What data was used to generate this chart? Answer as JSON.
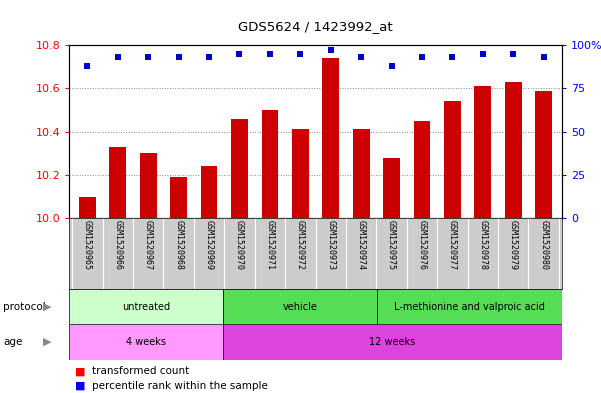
{
  "title": "GDS5624 / 1423992_at",
  "samples": [
    "GSM1520965",
    "GSM1520966",
    "GSM1520967",
    "GSM1520968",
    "GSM1520969",
    "GSM1520970",
    "GSM1520971",
    "GSM1520972",
    "GSM1520973",
    "GSM1520974",
    "GSM1520975",
    "GSM1520976",
    "GSM1520977",
    "GSM1520978",
    "GSM1520979",
    "GSM1520980"
  ],
  "transformed_count": [
    10.1,
    10.33,
    10.3,
    10.19,
    10.24,
    10.46,
    10.5,
    10.41,
    10.74,
    10.41,
    10.28,
    10.45,
    10.54,
    10.61,
    10.63,
    10.59
  ],
  "percentile_rank": [
    88,
    93,
    93,
    93,
    93,
    95,
    95,
    95,
    97,
    93,
    88,
    93,
    93,
    95,
    95,
    93
  ],
  "ylim_left": [
    10.0,
    10.8
  ],
  "ylim_right": [
    0,
    100
  ],
  "yticks_left": [
    10.0,
    10.2,
    10.4,
    10.6,
    10.8
  ],
  "yticks_right": [
    0,
    25,
    50,
    75,
    100
  ],
  "bar_color": "#cc0000",
  "dot_color": "#0000cc",
  "protocol_segs": [
    {
      "label": "untreated",
      "start": 0,
      "end": 5,
      "color": "#ccffcc"
    },
    {
      "label": "vehicle",
      "start": 5,
      "end": 10,
      "color": "#55dd55"
    },
    {
      "label": "L-methionine and valproic acid",
      "start": 10,
      "end": 16,
      "color": "#55dd55"
    }
  ],
  "age_segs": [
    {
      "label": "4 weeks",
      "start": 0,
      "end": 5,
      "color": "#ff99ff"
    },
    {
      "label": "12 weeks",
      "start": 5,
      "end": 16,
      "color": "#dd44dd"
    }
  ],
  "label_bg": "#cccccc",
  "fig_bg": "#ffffff"
}
